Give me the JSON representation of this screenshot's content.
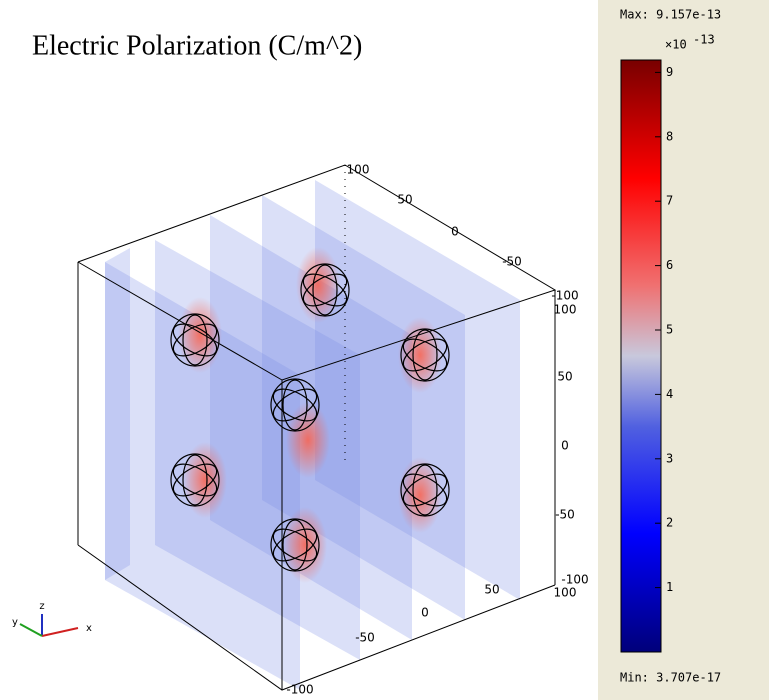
{
  "title": "Electric Polarization (C/m^2)",
  "colorbar": {
    "max_label": "Max: 9.157e-13",
    "exponent_base": "×10",
    "exponent": "-13",
    "ticks": [
      1,
      2,
      3,
      4,
      5,
      6,
      7,
      8,
      9
    ],
    "min_label": "Min: 3.707e-17"
  },
  "axes": {
    "x_ticks": [
      "-100",
      "-50",
      "0",
      "50",
      "100"
    ],
    "y_ticks": [
      "100",
      "50",
      "0",
      "-50",
      "-100"
    ],
    "z_ticks": [
      "100",
      "50",
      "0",
      "-50",
      "-100"
    ]
  },
  "triad": {
    "x": "x",
    "y": "y",
    "z": "z"
  }
}
